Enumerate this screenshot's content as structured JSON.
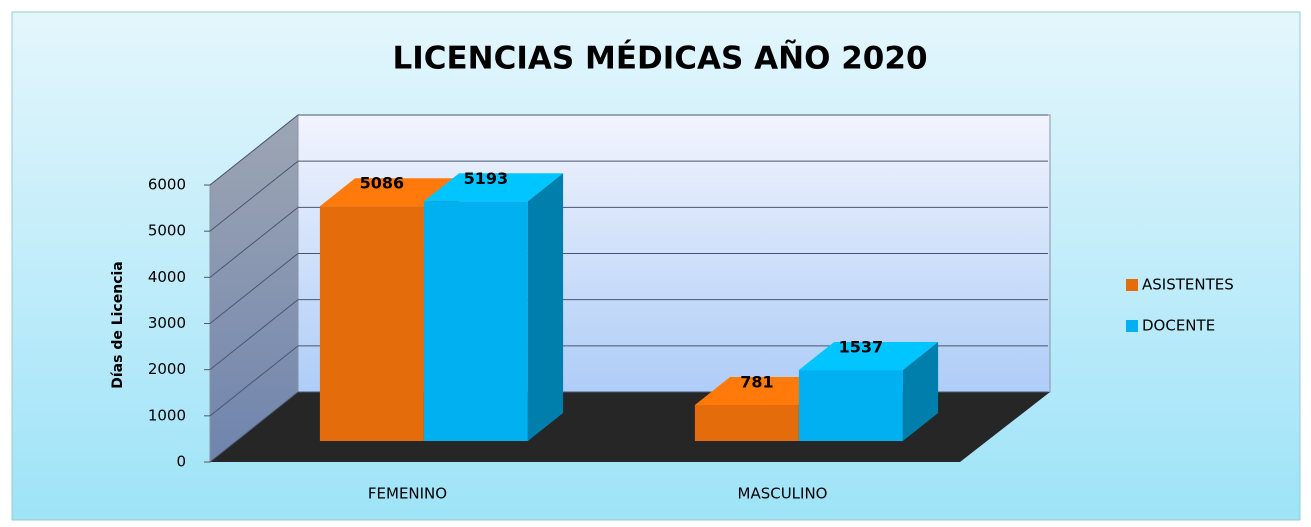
{
  "chart_data": {
    "type": "bar3d",
    "title": "LICENCIAS MÉDICAS AÑO 2020",
    "y_label": "Días de Licencia",
    "categories": [
      "FEMENINO",
      "MASCULINO"
    ],
    "series": [
      {
        "name": "ASISTENTES",
        "color": "#e46c0a",
        "values": [
          5086,
          781
        ]
      },
      {
        "name": "DOCENTE",
        "color": "#00b0f0",
        "values": [
          5193,
          1537
        ]
      }
    ],
    "ylim": [
      0,
      6000
    ],
    "yticks": [
      0,
      1000,
      2000,
      3000,
      4000,
      5000,
      6000
    ],
    "grid": true,
    "legend": "right"
  }
}
